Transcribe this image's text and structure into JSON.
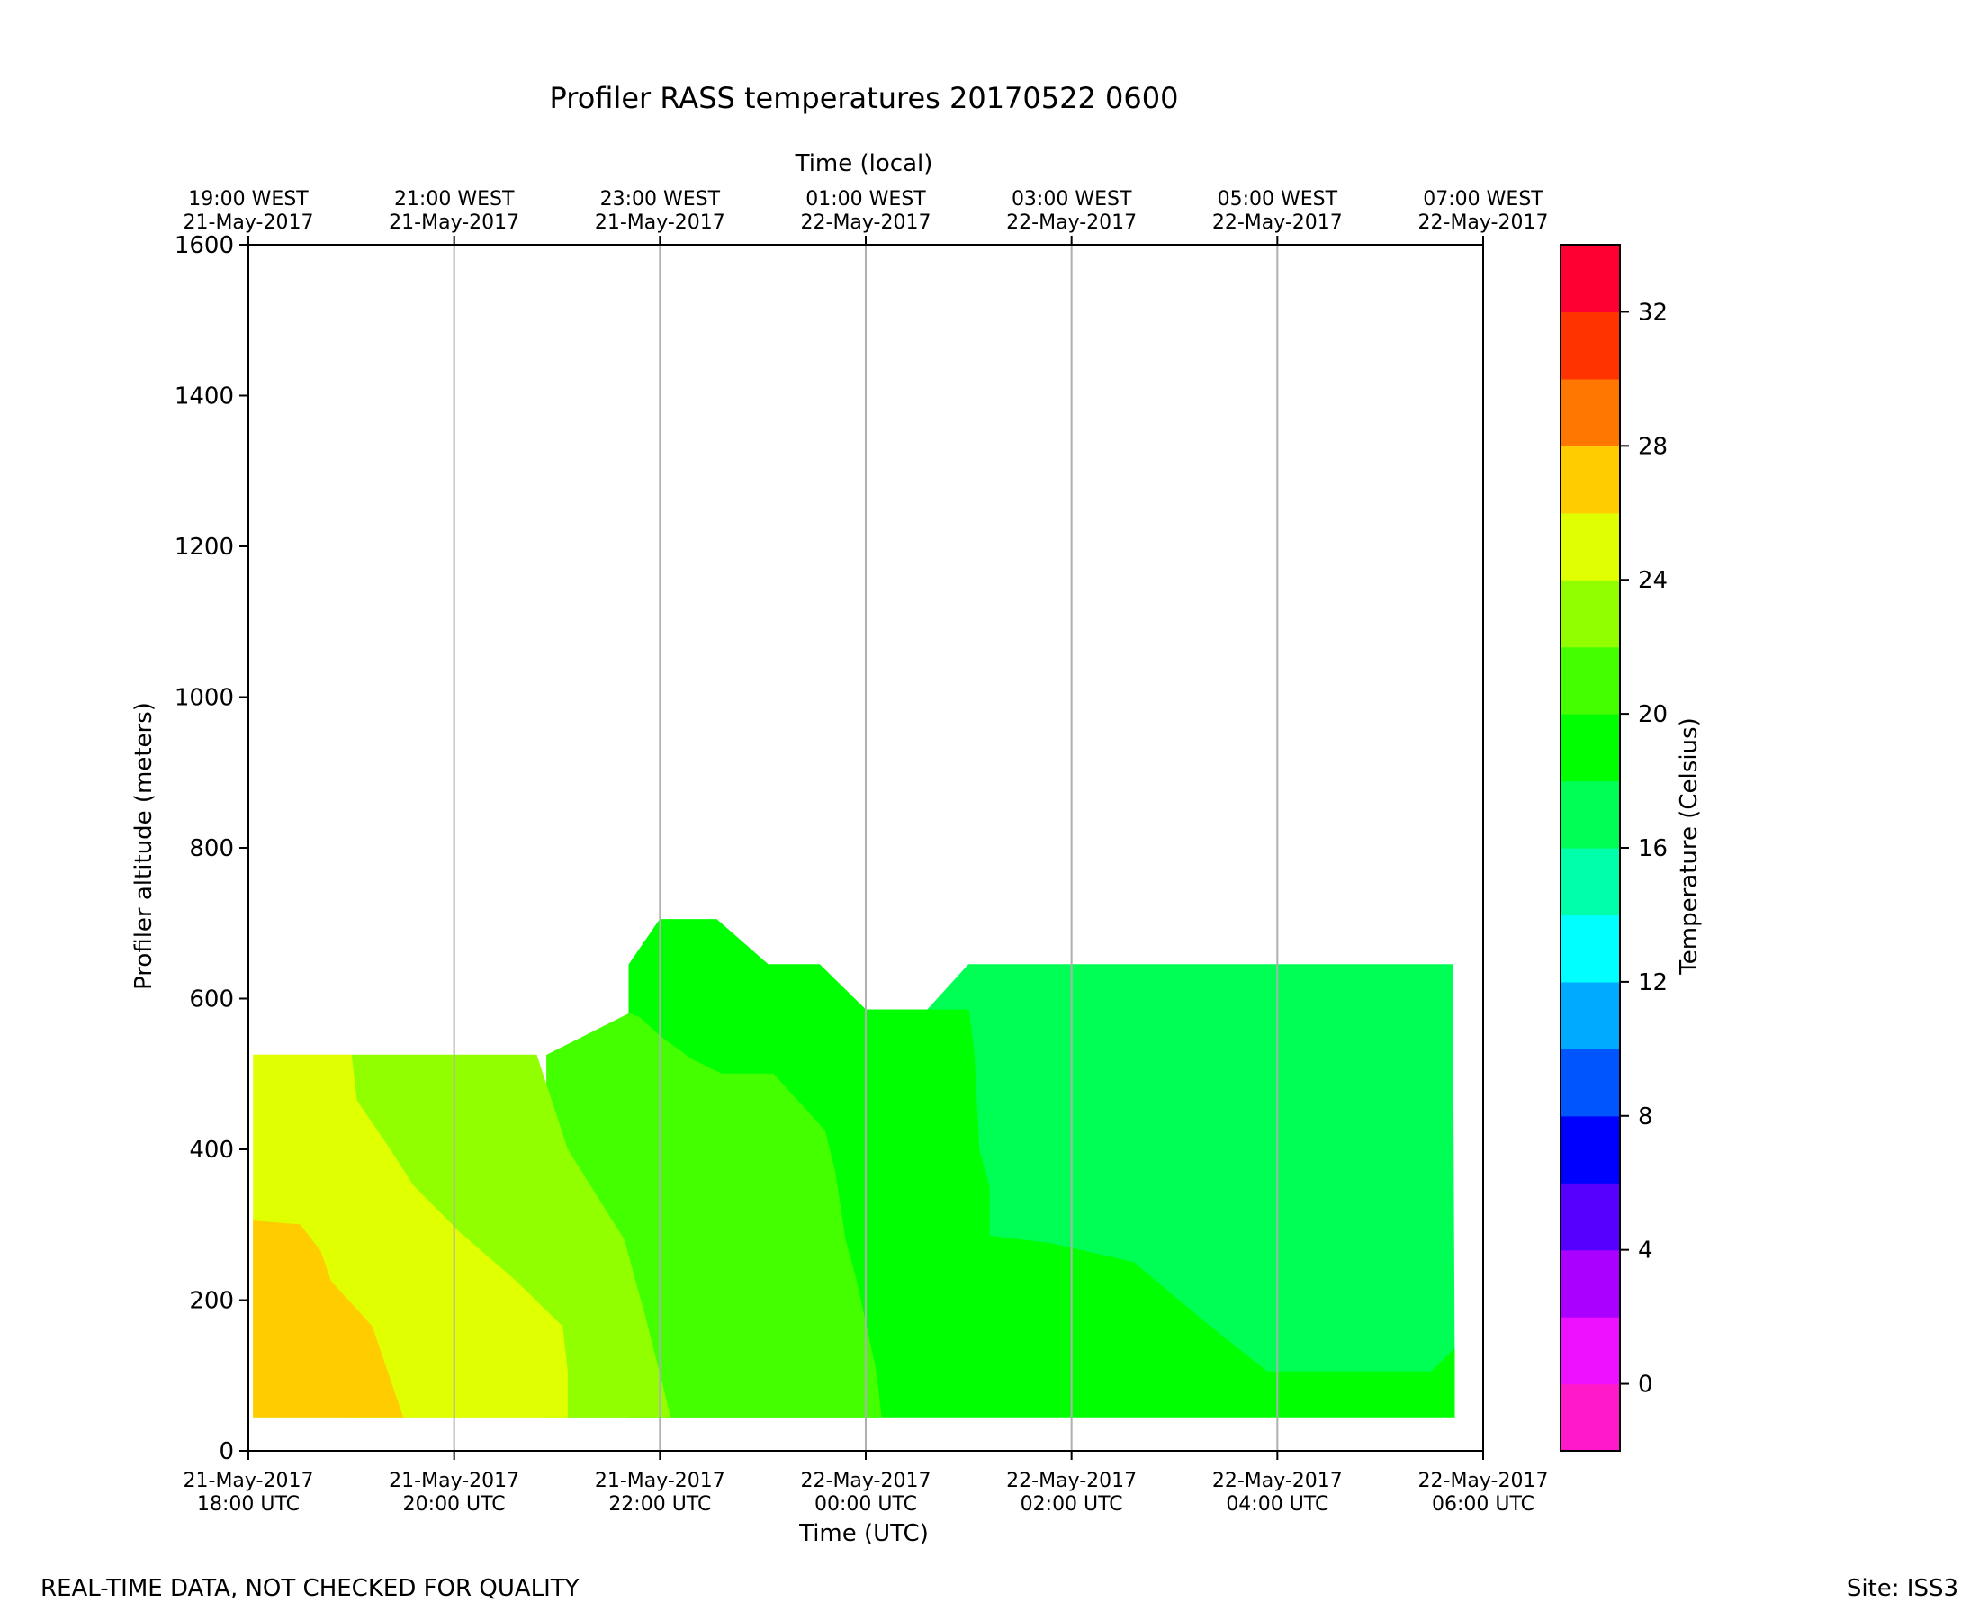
{
  "chart_data": {
    "type": "heatmap",
    "title": "Profiler RASS temperatures 20170522 0600",
    "xlabel": "Time (UTC)",
    "xlabel_top": "Time (local)",
    "ylabel": "Profiler altitude (meters)",
    "colorbar_label": "Temperature (Celsius)",
    "x_range_hours_utc": [
      18,
      30
    ],
    "ylim": [
      0,
      1600
    ],
    "y_ticks": [
      0,
      200,
      400,
      600,
      800,
      1000,
      1200,
      1400,
      1600
    ],
    "x_ticks_hours_utc": [
      18,
      20,
      22,
      24,
      26,
      28,
      30
    ],
    "x_tick_labels": [
      [
        "21-May-2017",
        "18:00 UTC"
      ],
      [
        "21-May-2017",
        "20:00 UTC"
      ],
      [
        "21-May-2017",
        "22:00 UTC"
      ],
      [
        "22-May-2017",
        "00:00 UTC"
      ],
      [
        "22-May-2017",
        "02:00 UTC"
      ],
      [
        "22-May-2017",
        "04:00 UTC"
      ],
      [
        "22-May-2017",
        "06:00 UTC"
      ]
    ],
    "x_tick_labels_top": [
      [
        "19:00 WEST",
        "21-May-2017"
      ],
      [
        "21:00 WEST",
        "21-May-2017"
      ],
      [
        "23:00 WEST",
        "21-May-2017"
      ],
      [
        "01:00 WEST",
        "22-May-2017"
      ],
      [
        "03:00 WEST",
        "22-May-2017"
      ],
      [
        "05:00 WEST",
        "22-May-2017"
      ],
      [
        "07:00 WEST",
        "22-May-2017"
      ]
    ],
    "grid": "vertical",
    "colorbar": {
      "levels": [
        -2,
        0,
        2,
        4,
        6,
        8,
        10,
        12,
        14,
        16,
        18,
        20,
        22,
        24,
        26,
        28,
        30,
        32,
        34
      ],
      "colors": [
        "#ff19c8",
        "#ee11ff",
        "#aa00ff",
        "#5500ff",
        "#0000ff",
        "#0055ff",
        "#00aaff",
        "#00ffff",
        "#00ffaa",
        "#00ff55",
        "#00ff00",
        "#44ff00",
        "#91ff00",
        "#e0ff00",
        "#ffcc00",
        "#ff7700",
        "#ff3300",
        "#ff0033"
      ],
      "tick_values": [
        0,
        4,
        8,
        12,
        16,
        20,
        24,
        28,
        32
      ]
    },
    "regions": [
      {
        "temp_band": "18-20",
        "color": "#00ff55",
        "points": [
          [
            23.6,
            585
          ],
          [
            24.6,
            585
          ],
          [
            25.0,
            645
          ],
          [
            29.7,
            645
          ],
          [
            29.72,
            105
          ],
          [
            27.9,
            105
          ],
          [
            27.3,
            170
          ],
          [
            26.6,
            250
          ],
          [
            25.8,
            275
          ],
          [
            25.2,
            285
          ],
          [
            25.2,
            350
          ],
          [
            25.1,
            400
          ],
          [
            25.05,
            530
          ],
          [
            25.0,
            585
          ]
        ]
      },
      {
        "temp_band": "20-22",
        "color": "#00ff00",
        "points": [
          [
            21.7,
            580
          ],
          [
            21.7,
            645
          ],
          [
            22.0,
            705
          ],
          [
            22.55,
            705
          ],
          [
            23.05,
            645
          ],
          [
            23.55,
            645
          ],
          [
            24.0,
            585
          ],
          [
            25.0,
            585
          ],
          [
            25.05,
            530
          ],
          [
            25.1,
            400
          ],
          [
            25.2,
            350
          ],
          [
            25.2,
            285
          ],
          [
            25.8,
            275
          ],
          [
            26.6,
            250
          ],
          [
            27.3,
            170
          ],
          [
            27.9,
            105
          ],
          [
            29.5,
            105
          ],
          [
            29.72,
            135
          ],
          [
            29.72,
            105
          ],
          [
            29.72,
            45
          ],
          [
            21.7,
            45
          ]
        ]
      },
      {
        "temp_band": "22-24",
        "color": "#44ff00",
        "points": [
          [
            20.9,
            525
          ],
          [
            21.7,
            580
          ],
          [
            21.8,
            575
          ],
          [
            22.0,
            550
          ],
          [
            22.3,
            520
          ],
          [
            22.6,
            500
          ],
          [
            23.1,
            500
          ],
          [
            23.6,
            425
          ],
          [
            23.7,
            370
          ],
          [
            23.8,
            280
          ],
          [
            23.9,
            230
          ],
          [
            24.1,
            105
          ],
          [
            24.15,
            45
          ],
          [
            20.9,
            45
          ]
        ]
      },
      {
        "temp_band": "24-26",
        "color": "#91ff00",
        "points": [
          [
            19.0,
            525
          ],
          [
            20.8,
            525
          ],
          [
            21.1,
            400
          ],
          [
            21.65,
            280
          ],
          [
            21.85,
            180
          ],
          [
            22.1,
            45
          ],
          [
            19.0,
            45
          ]
        ]
      },
      {
        "temp_band": "26-28",
        "color": "#e0ff00",
        "points": [
          [
            18.05,
            525
          ],
          [
            19.0,
            525
          ],
          [
            19.05,
            465
          ],
          [
            19.35,
            405
          ],
          [
            19.6,
            352
          ],
          [
            20.05,
            290
          ],
          [
            20.6,
            225
          ],
          [
            21.05,
            165
          ],
          [
            21.1,
            105
          ],
          [
            21.1,
            45
          ],
          [
            18.05,
            45
          ]
        ]
      },
      {
        "temp_band": "28-30",
        "color": "#ffcc00",
        "points": [
          [
            18.05,
            305
          ],
          [
            18.5,
            300
          ],
          [
            18.7,
            265
          ],
          [
            18.8,
            225
          ],
          [
            19.2,
            165
          ],
          [
            19.5,
            45
          ],
          [
            18.05,
            45
          ]
        ]
      }
    ]
  },
  "footer": {
    "left": "REAL-TIME DATA, NOT CHECKED FOR QUALITY",
    "right": "Site: ISS3"
  }
}
